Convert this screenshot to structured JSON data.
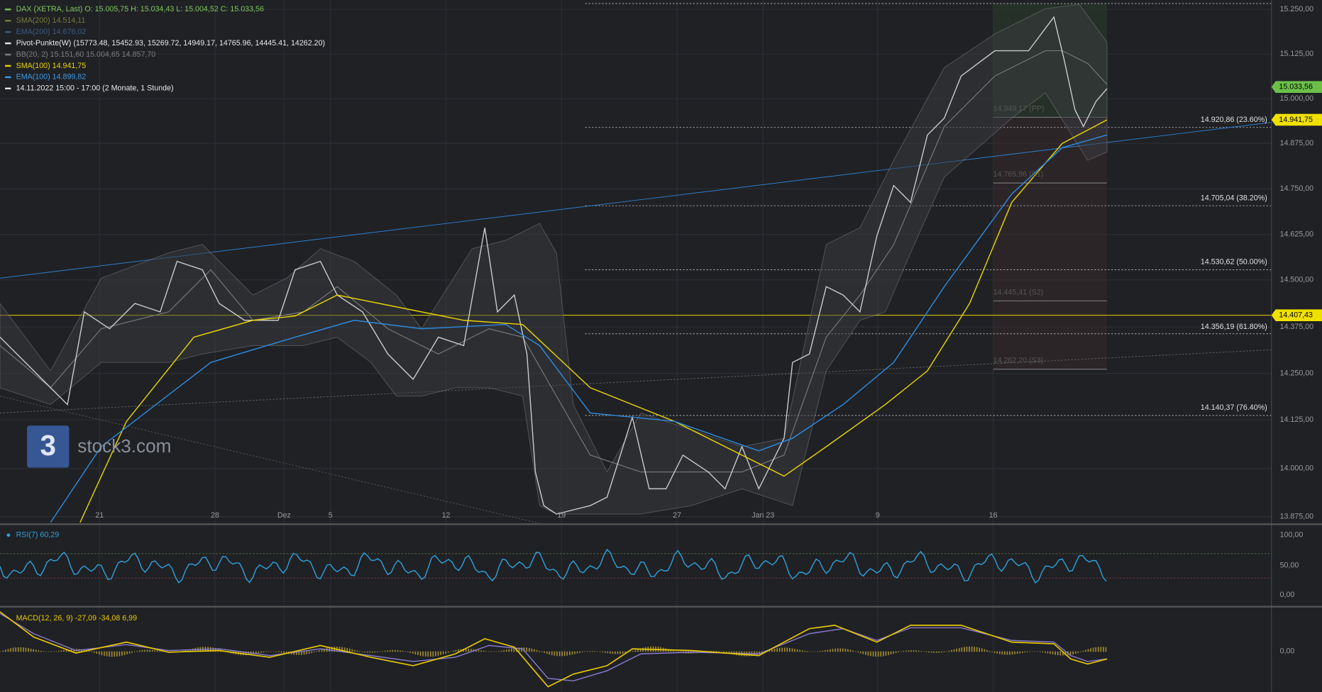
{
  "header": {
    "lines": [
      "DAX (XETRA, Last)   O: 15.005,75   H: 15.034,43   L: 15.004,52   C: 15.033,56",
      "SMA(200)  14.514,11",
      "EMA(200)  14.676,02",
      "Pivot-Punkte(W)   (15773.48, 15452.93, 15269.72, 14949.17, 14765.96, 14445.41, 14262.20)",
      "BB(20, 2)  15.151,60  15.004,65  14.857,70",
      "SMA(100)  14.941,75",
      "EMA(100)  14.899,82",
      "14.11.2022 15:00 - 17:00   (2 Monate, 1 Stunde)"
    ]
  },
  "price_axis": [
    "15.250,00",
    "15.125,00",
    "15.000,00",
    "14.875,00",
    "14.750,00",
    "14.625,00",
    "14.500,00",
    "14.375,00",
    "14.250,00",
    "14.125,00",
    "14.000,00",
    "13.875,00"
  ],
  "time_axis": [
    "21",
    "28",
    "Dez",
    "5",
    "12",
    "19",
    "27",
    "Jan 23",
    "9",
    "16"
  ],
  "price_tags": [
    "15.033,56",
    "14.941,75",
    "14.407,43"
  ],
  "fibonacci": [
    "14.920,86 (23.60%)",
    "14.705,04 (38.20%)",
    "14.530,62 (50.00%)",
    "14.356,19 (61.80%)",
    "14.140,37 (76.40%)"
  ],
  "pivots": [
    "14.949,17 (PP)",
    "14.765,96 (S1)",
    "14.445,41 (S2)",
    "14.262,20 (S3)"
  ],
  "rsi": {
    "label": "RSI(7)  60,29",
    "ticks": [
      "100,00",
      "50,00",
      "0,00"
    ]
  },
  "macd": {
    "label": "MACD(12, 26, 9)  -27,09  -34,08  6,99",
    "ticks": [
      "0,00"
    ]
  },
  "watermark": "stock3.com"
}
